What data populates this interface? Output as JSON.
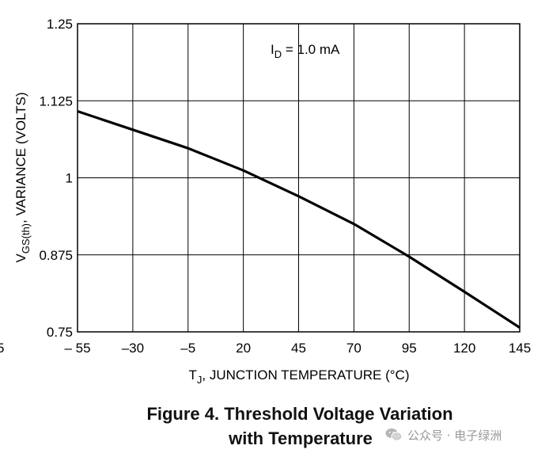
{
  "chart_data": {
    "type": "line",
    "x": [
      -55,
      -30,
      -5,
      20,
      45,
      70,
      95,
      120,
      145
    ],
    "series": [
      {
        "name": "VGS(th) variance",
        "values": [
          1.108,
          1.078,
          1.048,
          1.012,
          0.97,
          0.925,
          0.872,
          0.815,
          0.757
        ]
      }
    ],
    "xlim": [
      -55,
      145
    ],
    "ylim": [
      0.75,
      1.25
    ],
    "xticks": [
      -55,
      -30,
      -5,
      20,
      45,
      70,
      95,
      120,
      145
    ],
    "xtick_labels": [
      "– 55",
      "–30",
      "–5",
      "20",
      "45",
      "70",
      "95",
      "120",
      "145"
    ],
    "yticks": [
      0.75,
      0.875,
      1,
      1.125,
      1.25
    ],
    "ytick_labels": [
      "0.75",
      "0.875",
      "1",
      "1.125",
      "1.25"
    ],
    "grid": true,
    "xlabel": {
      "main": "T",
      "sub": "J",
      "rest": ", JUNCTION TEMPERATURE (°C)"
    },
    "ylabel": {
      "main": "V",
      "sub": "GS(th)",
      "rest": ", VARIANCE (VOLTS)"
    },
    "annotation": {
      "main": "I",
      "sub": "D",
      "rest": " = 1.0 mA"
    },
    "left_edge_fragment": "5"
  },
  "caption": {
    "line1": "Figure 4. Threshold Voltage Variation",
    "line2": "with Temperature"
  },
  "watermark": {
    "text": "公众号 · 电子绿洲",
    "icon": "wechat-icon"
  }
}
